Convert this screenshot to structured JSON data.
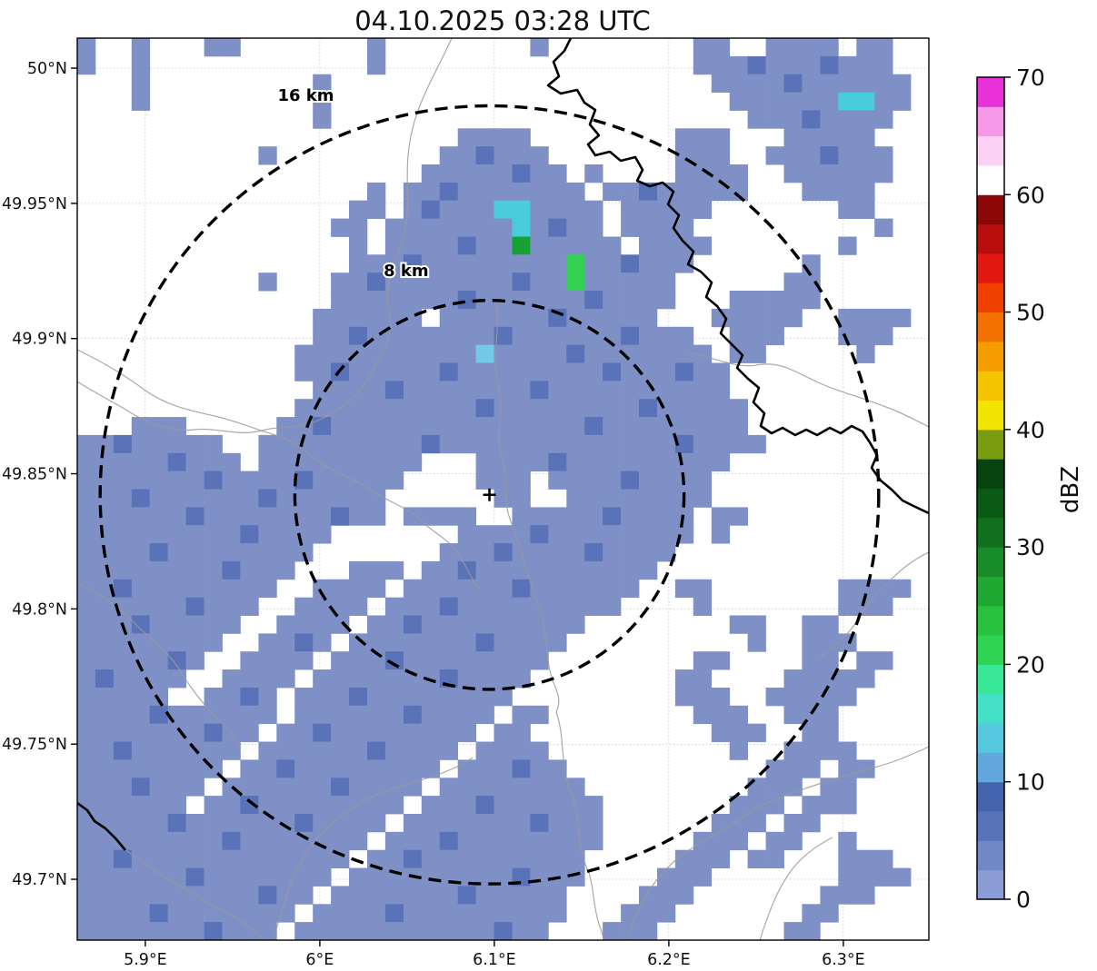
{
  "title": "04.10.2025 03:28 UTC",
  "axes": {
    "lon_range": [
      5.861,
      6.349
    ],
    "lat_range": [
      49.6775,
      50.0111
    ],
    "lat_ticks": [
      {
        "label": "50°N",
        "value": 50.0
      },
      {
        "label": "49.95°N",
        "value": 49.95
      },
      {
        "label": "49.9°N",
        "value": 49.9
      },
      {
        "label": "49.85°N",
        "value": 49.85
      },
      {
        "label": "49.8°N",
        "value": 49.8
      },
      {
        "label": "49.75°N",
        "value": 49.75
      },
      {
        "label": "49.7°N",
        "value": 49.7
      }
    ],
    "lon_ticks": [
      {
        "label": "5.9°E",
        "value": 5.9
      },
      {
        "label": "6°E",
        "value": 6.0
      },
      {
        "label": "6.1°E",
        "value": 6.1
      },
      {
        "label": "6.2°E",
        "value": 6.2
      },
      {
        "label": "6.3°E",
        "value": 6.3
      }
    ]
  },
  "radar_site": {
    "lon": 6.0972,
    "lat": 49.8422,
    "marker": "+"
  },
  "range_rings": [
    {
      "radius_km": 8,
      "label": "8 km",
      "label_lon": 6.0495,
      "label_lat": 49.923
    },
    {
      "radius_km": 16,
      "label": "16 km",
      "label_lon": 5.992,
      "label_lat": 49.988
    }
  ],
  "colorbar": {
    "label": "dBZ",
    "vmin": 0,
    "vmax": 70,
    "ticks": [
      0,
      10,
      20,
      30,
      40,
      50,
      60,
      70
    ],
    "colors": [
      "#8b9dd4",
      "#7188c6",
      "#5873b8",
      "#4463ae",
      "#62a8dc",
      "#55c8e0",
      "#45e0c8",
      "#38e896",
      "#2ed452",
      "#28c23e",
      "#1fa832",
      "#188c28",
      "#10701e",
      "#0a5a16",
      "#07430f",
      "#7a9c10",
      "#f2e400",
      "#f4c400",
      "#f49c00",
      "#f47000",
      "#f04000",
      "#e01810",
      "#b80e0e",
      "#8c0808",
      "#ffffff",
      "#fcd2f4",
      "#f898e8",
      "#e832d8"
    ]
  },
  "chart_data": {
    "type": "heatmap",
    "units": "dBZ",
    "note": "Radar reflectivity field on lon/lat grid; class characters map to dBZ values below. '.' means no echo.",
    "class_dbz": {
      "1": 2,
      "2": 6,
      "3": 11,
      "4": 14,
      "5": 21,
      "6": 27
    },
    "class_colors": {
      "1": "#7e90c6",
      "2": "#5a72b8",
      "3": "#74c9e8",
      "4": "#49ccdc",
      "5": "#32d153",
      "6": "#17a033"
    },
    "grid_cols": 47,
    "grid_rows": 50,
    "grid": [
      "1..1...11.......1........1........11..1111.11..",
      "1..1............1.................11121112111..",
      "...1.........1.....................11112111111.",
      "...1.........1......................1111114411.",
      ".............1.......................11121111..",
      ".....................1111........111...11111...",
      "..........1.........112111.......111..1112111..",
      "...................11111211.1....1111..111111..",
      "................1.1121111111.11211111...1111...",
      "...............11.12111441111.11111.......11...",
      "..............11.111111141211.1111..........1..",
      "...............1.1111211611111.1111.......1....",
      "...............1112111111115112111......1......",
      "..........1...1121111111211511111......11......",
      "..............1111111211111121111...11111......",
      ".............111111.111111211111...11111..1111.",
      ".............112111111121111112111..111...111..",
      "............11111111113111121111111.11.....1...",
      "............112111112111111112111211...........",
      ".............11112111111121111111111...........",
      "............1111111111211111111211111..........",
      "...111.....11211111111111111211111111..........",
      "11211111..1111111112111111111111121111.........",
      "111112111.111111111...11112111111111...........",
      "111111121111211111....111.111121111............",
      "11121111112111111......11..11111111............",
      "11111121111111211.1111..1111121111.11..........",
      "11111111121111.......1111211111111.1...........",
      "1111211111111.......1112111121111..............",
      "111111112111...111.1121111111111...............",
      "11211111111..1111.1111112111111..11.......1111.",
      "1111112111..1111.1112111111111....1.......111..",
      "111211111..1111.112111111111........11..11.....",
      "11111111..1121.111111121111..........1..111....",
      "1111121..1111.111211111111........11....11.11..",
      "121111..1111.111111121111........11....11111...",
      "11111..1121.111211111111.........111..11111....",
      "11112111111.11111121111.11........111..111.....",
      "1111111211.11211111111.11..........111..11.....",
      "112111111.11111121111.1111..........1..1111....",
      "11111111.11211111111.111211...........111.11...",
      "1112111.11111121111.11111111.........111.11....",
      "111111.11211111111.1112111111.......111.111....",
      "11111211111121111.11111112111......111.11......",
      "1111111121111111.111211111111.....111.11..1....",
      "112111111111111.112111111111.....111.11...111..",
      "11111121111111.1111111112111....111.......1111.",
      "1111111111211.1111111211111....111.......111...",
      "111121111111.11112111111111...111.......11.....",
      "11111112111.11111111111211...111.......11......"
    ]
  },
  "map_lines": {
    "border": [
      "M 628 42 L 621 56 L 609 68 L 615 84 L 603 94 L 617 103 L 635 99 L 643 113 L 655 121 L 649 137 L 659 149 L 647 159 L 655 171 L 671 167 L 683 177 L 699 173 L 707 187 L 701 199 L 715 205 L 729 201 L 741 211 L 735 225 L 747 237 L 741 251 L 751 265 L 763 277 L 757 291 L 771 299 L 783 311 L 777 327 L 789 337 L 799 351 L 793 367 L 805 379 L 817 391 L 811 405 L 823 417 L 835 427 L 829 443 L 841 455 L 837 469 L 849 477 L 861 471 L 875 479 L 887 473 L 899 479 L 913 471 L 925 477 L 937 469 L 949 475 L 957 487 L 965 501 L 959 515 L 969 529 L 981 539 L 993 551 L 1005 557 L 1022 565",
      "M 85 884 L 96 892 L 104 904 L 116 912 L 128 924 L 138 936"
    ],
    "minor": [
      "M 497 42 C 480 80 460 110 452 150 C 444 190 452 220 446 252 C 440 282 420 310 428 342 C 434 368 420 392 408 412",
      "M 408 412 C 392 440 372 452 352 462 C 330 473 308 468 288 474 C 262 481 238 470 214 473 C 190 476 160 465 140 452 C 120 440 100 430 85 420",
      "M 545 328 C 552 362 540 392 548 422 C 556 452 544 474 552 502 C 560 530 552 548 562 574 C 574 604 580 636 592 664 C 604 694 598 726 610 754 C 618 772 614 778 612 784",
      "M 758 388 C 788 394 810 406 832 402 C 858 397 874 409 896 419 C 920 431 948 437 972 447 C 990 453 1008 463 1022 470",
      "M 85 642 C 110 652 130 668 148 686 C 166 704 186 718 198 738 C 210 758 224 776 240 792 C 250 802 258 812 264 822",
      "M 300 1035 C 312 1000 318 968 336 940 C 354 912 378 894 404 880 C 430 866 458 862 484 852 C 500 846 512 840 520 834",
      "M 690 1035 C 700 1000 716 972 740 950 C 764 928 796 916 820 898 C 844 880 876 872 904 862 C 932 852 964 846 990 836 C 1004 830 1014 826 1022 822",
      "M 836 1035 C 846 1004 856 976 874 954 C 886 940 900 930 916 922",
      "M 1022 608 C 1000 618 984 634 968 650 C 952 666 944 686 930 700 C 920 710 910 718 902 724",
      "M 85 385 C 112 398 136 412 160 430 C 184 447 210 452 236 458 C 258 463 280 472 300 478 C 320 484 338 498 354 510 C 370 522 390 526 406 538 C 422 550 442 556 458 568",
      "M 458 568 C 470 582 488 590 500 604 C 512 618 516 636 528 648",
      "M 138 936 C 158 948 172 962 192 972 C 212 982 228 996 248 1004 C 262 1010 276 1022 288 1033",
      "M 612 784 C 622 812 616 844 628 872 C 640 900 634 930 646 956 C 654 974 652 998 660 1020 C 664 1030 664 1035 664 1035"
    ]
  }
}
